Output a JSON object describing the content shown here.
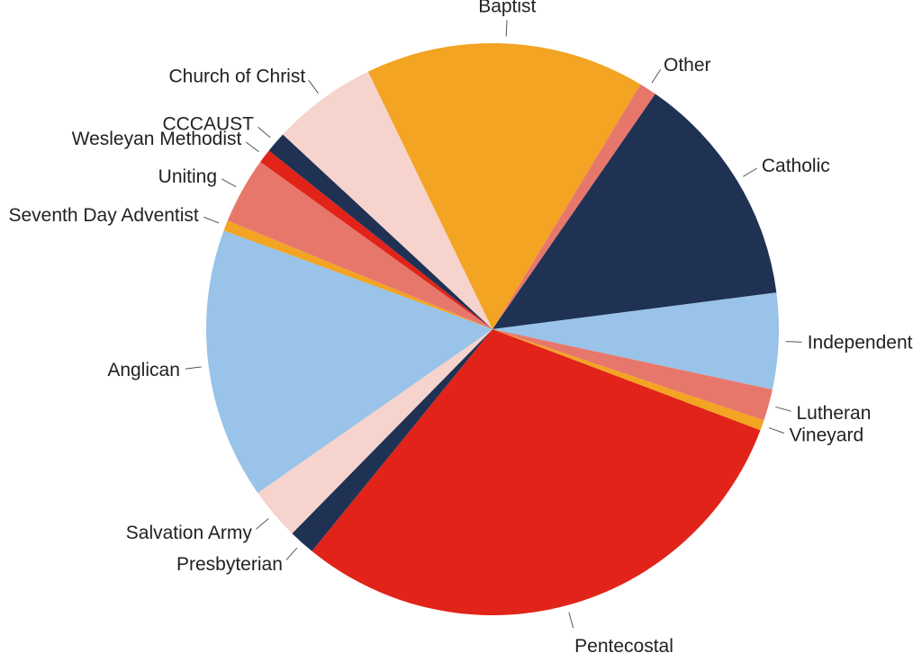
{
  "chart_data": {
    "type": "pie",
    "title": "",
    "start_angle_deg": 31.1,
    "direction": "clockwise",
    "slices": [
      {
        "label": "Other",
        "value": 1.0,
        "color": "#e8776b"
      },
      {
        "label": "Catholic",
        "value": 13.5,
        "color": "#1f3254"
      },
      {
        "label": "Independent",
        "value": 5.5,
        "color": "#99c3e8"
      },
      {
        "label": "Lutheran",
        "value": 1.8,
        "color": "#e8776b"
      },
      {
        "label": "Vineyard",
        "value": 0.6,
        "color": "#f2a422"
      },
      {
        "label": "Pentecostal",
        "value": 30.5,
        "color": "#e12319"
      },
      {
        "label": "Presbyterian",
        "value": 1.5,
        "color": "#1f3254"
      },
      {
        "label": "Salvation Army",
        "value": 3.0,
        "color": "#f6d3cd"
      },
      {
        "label": "Anglican",
        "value": 15.5,
        "color": "#99c3e8"
      },
      {
        "label": "Seventh Day Adventist",
        "value": 0.6,
        "color": "#f2a422"
      },
      {
        "label": "Uniting",
        "value": 3.8,
        "color": "#e8776b"
      },
      {
        "label": "Wesleyan Methodist",
        "value": 0.8,
        "color": "#e12319"
      },
      {
        "label": "CCCAUST",
        "value": 1.2,
        "color": "#1f3254"
      },
      {
        "label": "Church of Christ",
        "value": 6.0,
        "color": "#f6d3cd"
      },
      {
        "label": "Baptist",
        "value": 16.0,
        "color": "#f2a422"
      }
    ]
  }
}
